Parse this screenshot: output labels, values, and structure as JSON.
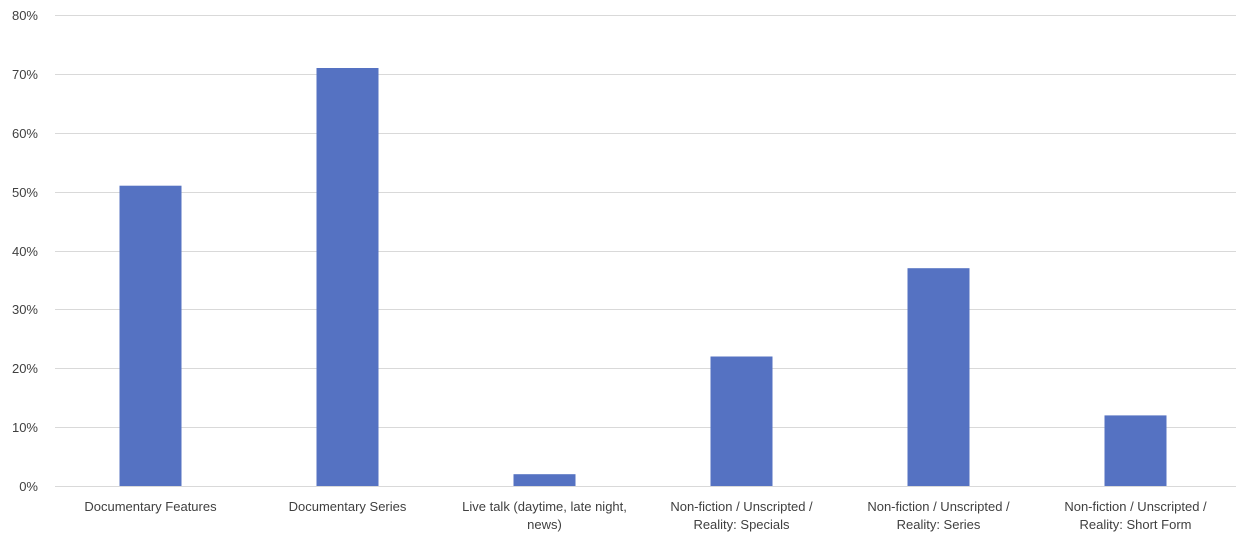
{
  "chart_data": {
    "type": "bar",
    "title": "",
    "xlabel": "",
    "ylabel": "",
    "ylim": [
      0,
      80
    ],
    "y_tick_values": [
      0,
      10,
      20,
      30,
      40,
      50,
      60,
      70,
      80
    ],
    "y_tick_labels": [
      "0%",
      "10%",
      "20%",
      "30%",
      "40%",
      "50%",
      "60%",
      "70%",
      "80%"
    ],
    "grid": "horizontal",
    "legend": "none",
    "bar_color": "#5572c2",
    "gridline_color": "#d9d9d9",
    "categories": [
      [
        "Documentary Features"
      ],
      [
        "Documentary Series"
      ],
      [
        "Live talk (daytime, late night,",
        "news)"
      ],
      [
        "Non-fiction / Unscripted /",
        "Reality: Specials"
      ],
      [
        "Non-fiction / Unscripted /",
        "Reality: Series"
      ],
      [
        "Non-fiction / Unscripted /",
        "Reality: Short Form"
      ]
    ],
    "values": [
      51,
      71,
      2,
      22,
      37,
      12
    ]
  }
}
